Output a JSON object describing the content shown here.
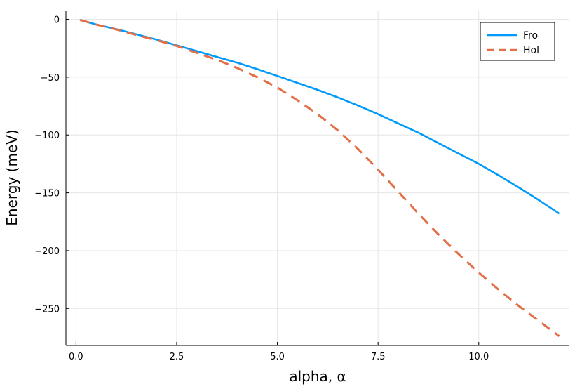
{
  "chart_data": {
    "type": "line",
    "title": "",
    "xlabel": "alpha, α",
    "ylabel": "Energy (meV)",
    "xlim": [
      -0.25,
      12.25
    ],
    "ylim": [
      -282,
      7
    ],
    "x_ticks": [
      0,
      2.5,
      5,
      7.5,
      10
    ],
    "x_tick_labels": [
      "0.0",
      "2.5",
      "5.0",
      "7.5",
      "10.0"
    ],
    "y_ticks": [
      0,
      -50,
      -100,
      -150,
      -200,
      -250
    ],
    "y_tick_labels": [
      "0",
      "−50",
      "−100",
      "−150",
      "−200",
      "−250"
    ],
    "grid": true,
    "legend_position": "top-right",
    "series": [
      {
        "name": "Fro",
        "color": "#009AFA",
        "style": "solid",
        "x": [
          0.1,
          0.5,
          1,
          1.5,
          2,
          2.5,
          3,
          3.5,
          4,
          4.5,
          5,
          5.5,
          6,
          6.5,
          7,
          7.5,
          8,
          8.5,
          9,
          9.5,
          10,
          10.5,
          11,
          11.5,
          12
        ],
        "y": [
          -0.5,
          -4.5,
          -8.5,
          -13,
          -17.5,
          -22.5,
          -27.5,
          -32.5,
          -37.5,
          -43,
          -49,
          -55,
          -61,
          -67.5,
          -74.5,
          -82,
          -90,
          -98,
          -107,
          -116,
          -125,
          -135,
          -145.5,
          -156.5,
          -168
        ]
      },
      {
        "name": "Hol",
        "color": "#E26F46",
        "style": "dashed",
        "x": [
          0.1,
          0.5,
          1,
          1.5,
          2,
          2.5,
          3,
          3.5,
          4,
          4.5,
          5,
          5.5,
          6,
          6.5,
          7,
          7.5,
          8,
          8.5,
          9,
          9.5,
          10,
          10.5,
          11,
          11.5,
          12
        ],
        "y": [
          -0.5,
          -4.5,
          -8.7,
          -13.5,
          -18,
          -23,
          -29,
          -35,
          -42,
          -50,
          -59,
          -70,
          -82,
          -96,
          -112,
          -130,
          -149,
          -168,
          -186,
          -203,
          -219,
          -234,
          -248,
          -261,
          -274
        ]
      }
    ]
  }
}
